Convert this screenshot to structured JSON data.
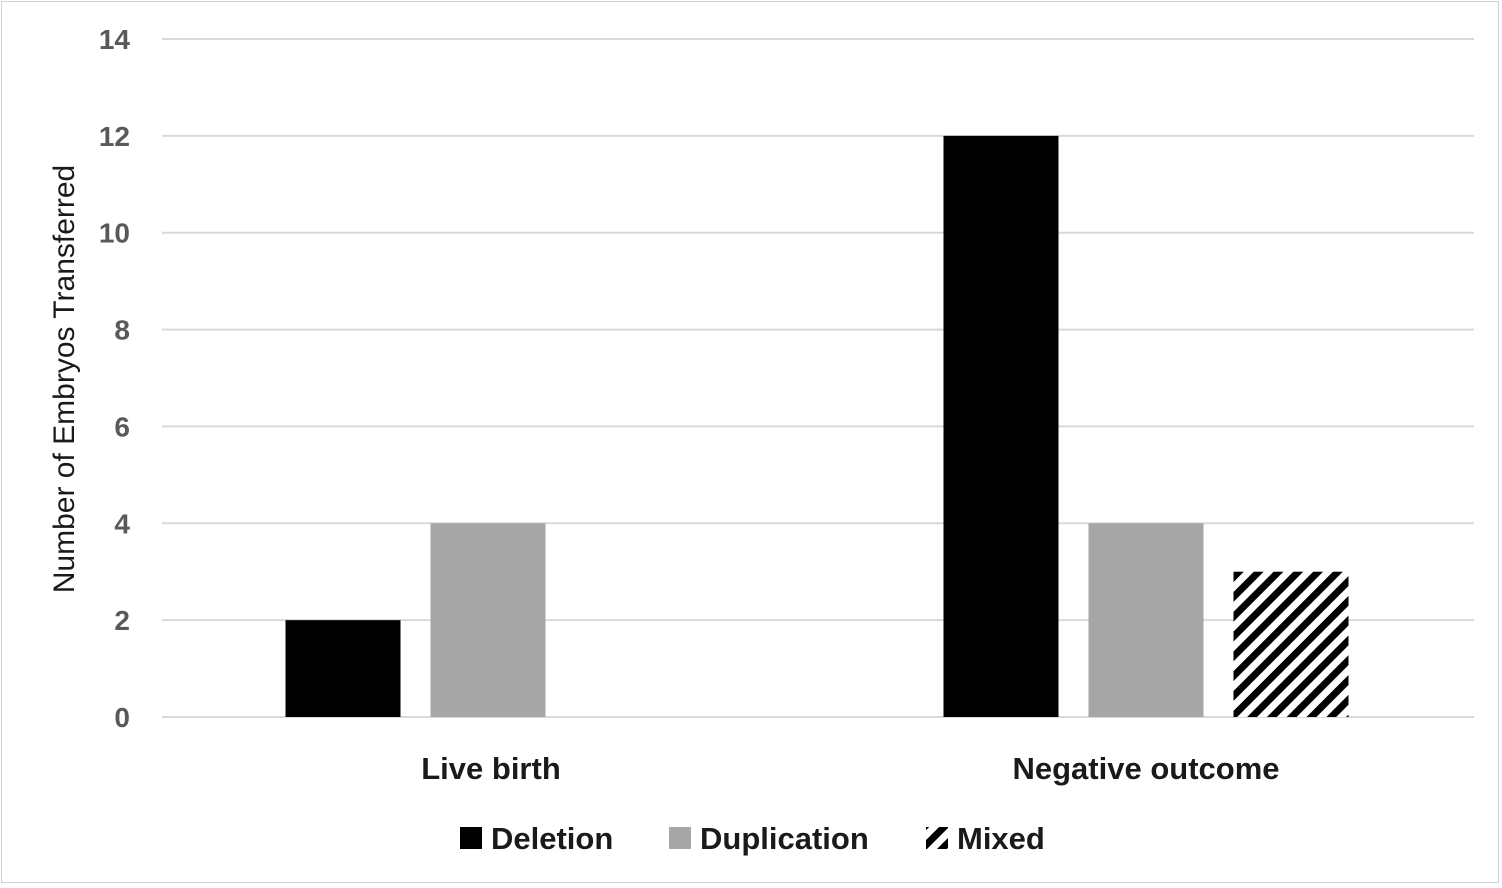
{
  "chart_data": {
    "type": "bar",
    "categories": [
      "Live birth",
      "Negative outcome"
    ],
    "series": [
      {
        "name": "Deletion",
        "values": [
          2,
          12
        ],
        "color": "#000000",
        "pattern": "solid"
      },
      {
        "name": "Duplication",
        "values": [
          4,
          4
        ],
        "color": "#a6a6a6",
        "pattern": "solid"
      },
      {
        "name": "Mixed",
        "values": [
          null,
          3
        ],
        "color": "#000000",
        "pattern": "diagonal-stripes"
      }
    ],
    "title": "",
    "xlabel": "",
    "ylabel": "Number of Embryos Transferred",
    "ylim": [
      0,
      14
    ],
    "yticks": [
      "0",
      "2",
      "4",
      "6",
      "8",
      "10",
      "12",
      "14"
    ],
    "grid": true,
    "legend_position": "bottom"
  }
}
